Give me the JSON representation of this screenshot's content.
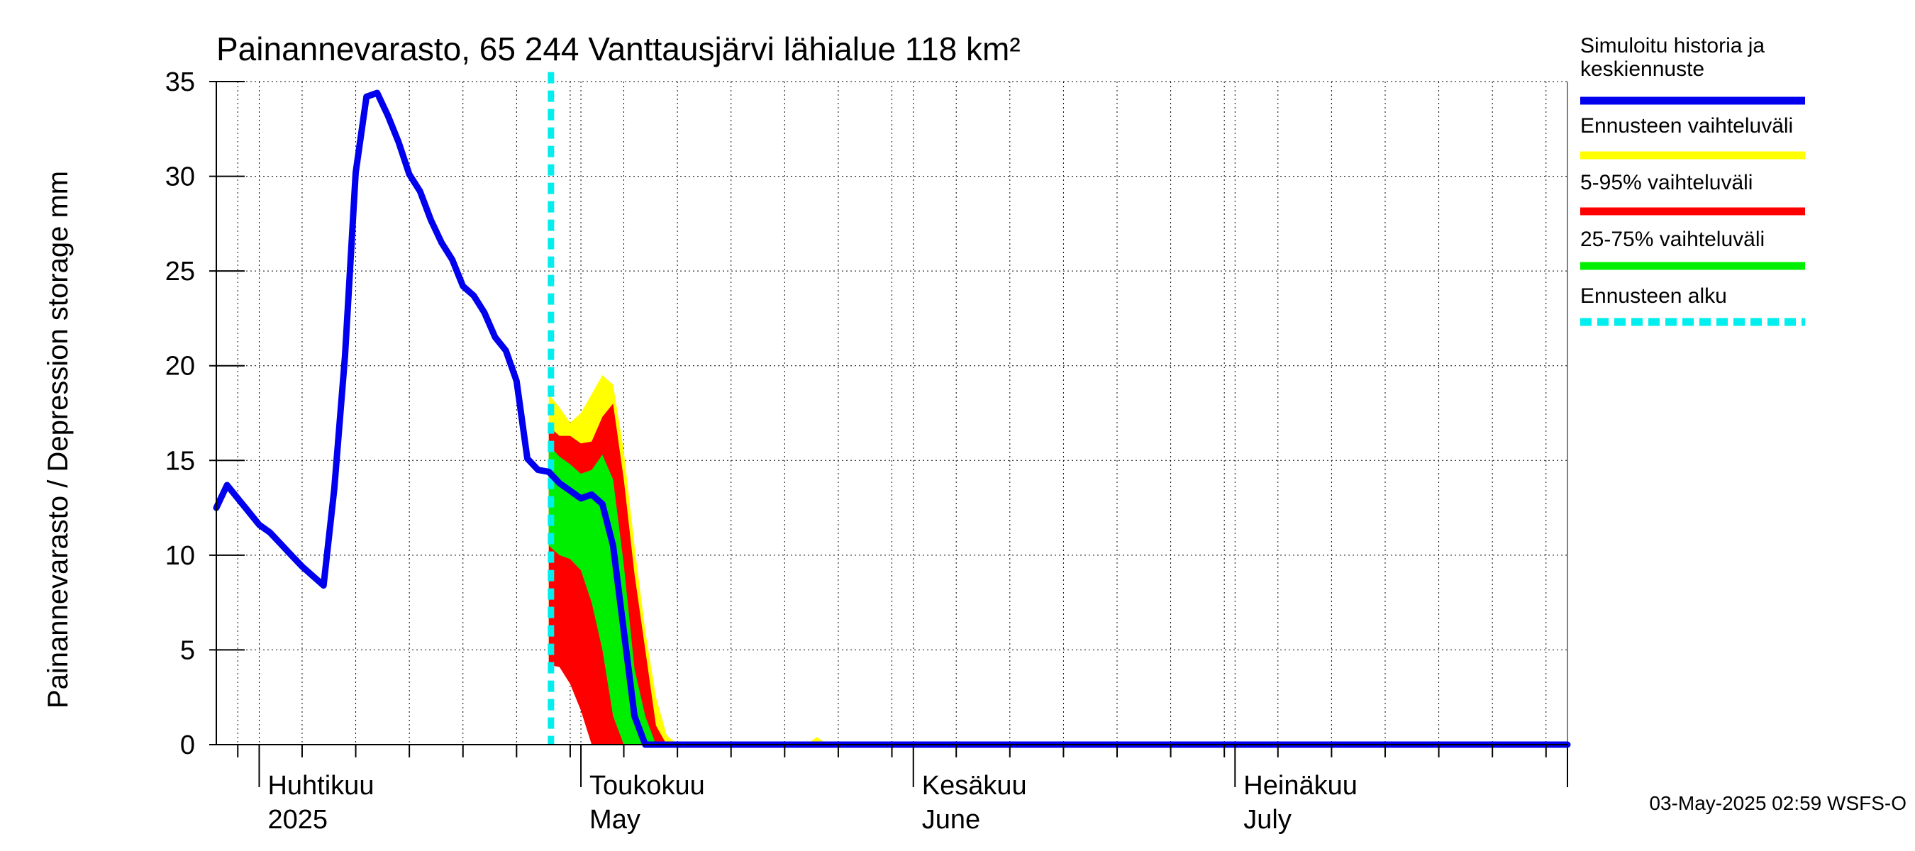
{
  "chart_data": {
    "type": "area",
    "title": "Painannevarasto, 65 244 Vanttausjärvi lähialue 118 km²",
    "ylabel": "Painannevarasto / Depression storage    mm",
    "xlabel": "",
    "ylim": [
      0,
      35
    ],
    "yticks": [
      0,
      5,
      10,
      15,
      20,
      25,
      30,
      35
    ],
    "xlim": [
      "2025-03-28",
      "2025-08-01"
    ],
    "grid": true,
    "x_month_labels": [
      {
        "date": "2025-04-01",
        "line1": "Huhtikuu",
        "line2": "2025"
      },
      {
        "date": "2025-05-01",
        "line1": "Toukokuu",
        "line2": "May"
      },
      {
        "date": "2025-06-01",
        "line1": "Kesäkuu",
        "line2": "June"
      },
      {
        "date": "2025-07-01",
        "line1": "Heinäkuu",
        "line2": "July"
      }
    ],
    "forecast_start": "2025-04-29",
    "series": [
      {
        "name": "Simuloitu historia ja keskiennuste",
        "kind": "line",
        "color": "#0000ee",
        "points": [
          [
            "2025-03-28",
            12.5
          ],
          [
            "2025-03-29",
            13.7
          ],
          [
            "2025-03-30",
            13.0
          ],
          [
            "2025-03-31",
            12.3
          ],
          [
            "2025-04-01",
            11.6
          ],
          [
            "2025-04-02",
            11.2
          ],
          [
            "2025-04-03",
            10.6
          ],
          [
            "2025-04-04",
            10.0
          ],
          [
            "2025-04-05",
            9.4
          ],
          [
            "2025-04-06",
            8.9
          ],
          [
            "2025-04-07",
            8.4
          ],
          [
            "2025-04-08",
            13.5
          ],
          [
            "2025-04-09",
            20.5
          ],
          [
            "2025-04-10",
            30.2
          ],
          [
            "2025-04-11",
            34.2
          ],
          [
            "2025-04-12",
            34.4
          ],
          [
            "2025-04-13",
            33.2
          ],
          [
            "2025-04-14",
            31.8
          ],
          [
            "2025-04-15",
            30.1
          ],
          [
            "2025-04-16",
            29.2
          ],
          [
            "2025-04-17",
            27.7
          ],
          [
            "2025-04-18",
            26.5
          ],
          [
            "2025-04-19",
            25.6
          ],
          [
            "2025-04-20",
            24.2
          ],
          [
            "2025-04-21",
            23.7
          ],
          [
            "2025-04-22",
            22.8
          ],
          [
            "2025-04-23",
            21.5
          ],
          [
            "2025-04-24",
            20.8
          ],
          [
            "2025-04-25",
            19.2
          ],
          [
            "2025-04-26",
            15.1
          ],
          [
            "2025-04-27",
            14.5
          ],
          [
            "2025-04-28",
            14.4
          ],
          [
            "2025-04-29",
            13.8
          ],
          [
            "2025-04-30",
            13.4
          ],
          [
            "2025-05-01",
            13.0
          ],
          [
            "2025-05-02",
            13.2
          ],
          [
            "2025-05-03",
            12.7
          ],
          [
            "2025-05-04",
            10.5
          ],
          [
            "2025-05-05",
            6.0
          ],
          [
            "2025-05-06",
            1.5
          ],
          [
            "2025-05-07",
            0.0
          ],
          [
            "2025-05-08",
            0.0
          ],
          [
            "2025-08-01",
            0.0
          ]
        ]
      },
      {
        "name": "Ennusteen vaihteluväli",
        "kind": "band",
        "color": "#ffff00",
        "points": [
          [
            "2025-04-28",
            18.5,
            4.5
          ],
          [
            "2025-04-29",
            17.8,
            4.3
          ],
          [
            "2025-04-30",
            17.0,
            3.5
          ],
          [
            "2025-05-01",
            17.5,
            2.5
          ],
          [
            "2025-05-02",
            18.5,
            1.0
          ],
          [
            "2025-05-03",
            19.5,
            0.0
          ],
          [
            "2025-05-04",
            19.0,
            0.0
          ],
          [
            "2025-05-05",
            15.5,
            0.0
          ],
          [
            "2025-05-06",
            10.5,
            0.0
          ],
          [
            "2025-05-07",
            6.0,
            0.0
          ],
          [
            "2025-05-08",
            2.5,
            0.0
          ],
          [
            "2025-05-09",
            0.5,
            0.0
          ],
          [
            "2025-05-10",
            0.0,
            0.0
          ],
          [
            "2025-05-22",
            0.0,
            0.0
          ],
          [
            "2025-05-23",
            0.4,
            0.0
          ],
          [
            "2025-05-24",
            0.0,
            0.0
          ]
        ]
      },
      {
        "name": "5-95% vaihteluväli",
        "kind": "band",
        "color": "#ff0000",
        "points": [
          [
            "2025-04-28",
            16.8,
            4.2
          ],
          [
            "2025-04-29",
            16.3,
            4.1
          ],
          [
            "2025-04-30",
            16.3,
            3.2
          ],
          [
            "2025-05-01",
            15.9,
            1.8
          ],
          [
            "2025-05-02",
            16.0,
            0.0
          ],
          [
            "2025-05-03",
            17.3,
            0.0
          ],
          [
            "2025-05-04",
            18.0,
            0.0
          ],
          [
            "2025-05-05",
            14.0,
            0.0
          ],
          [
            "2025-05-06",
            9.0,
            0.0
          ],
          [
            "2025-05-07",
            5.0,
            0.0
          ],
          [
            "2025-05-08",
            1.0,
            0.0
          ],
          [
            "2025-05-09",
            0.0,
            0.0
          ]
        ]
      },
      {
        "name": "25-75% vaihteluväli",
        "kind": "band",
        "color": "#00ee00",
        "points": [
          [
            "2025-04-28",
            15.8,
            10.5
          ],
          [
            "2025-04-29",
            15.2,
            10.0
          ],
          [
            "2025-04-30",
            14.8,
            9.8
          ],
          [
            "2025-05-01",
            14.3,
            9.2
          ],
          [
            "2025-05-02",
            14.5,
            7.5
          ],
          [
            "2025-05-03",
            15.3,
            5.0
          ],
          [
            "2025-05-04",
            14.0,
            1.5
          ],
          [
            "2025-05-05",
            9.5,
            0.0
          ],
          [
            "2025-05-06",
            4.0,
            0.0
          ],
          [
            "2025-05-07",
            1.5,
            0.0
          ],
          [
            "2025-05-08",
            0.0,
            0.0
          ]
        ]
      }
    ],
    "legend": {
      "placement": "right",
      "entries": [
        {
          "label_lines": [
            "Simuloitu historia ja",
            "keskiennuste"
          ],
          "color": "#0000ee",
          "style": "solid"
        },
        {
          "label_lines": [
            "Ennusteen vaihteluväli"
          ],
          "color": "#ffff00",
          "style": "solid"
        },
        {
          "label_lines": [
            "5-95% vaihteluväli"
          ],
          "color": "#ff0000",
          "style": "solid"
        },
        {
          "label_lines": [
            "25-75% vaihteluväli"
          ],
          "color": "#00ee00",
          "style": "solid"
        },
        {
          "label_lines": [
            "Ennusteen alku"
          ],
          "color": "#00eeee",
          "style": "dashed"
        }
      ]
    },
    "timestamp": "03-May-2025 02:59 WSFS-O"
  }
}
